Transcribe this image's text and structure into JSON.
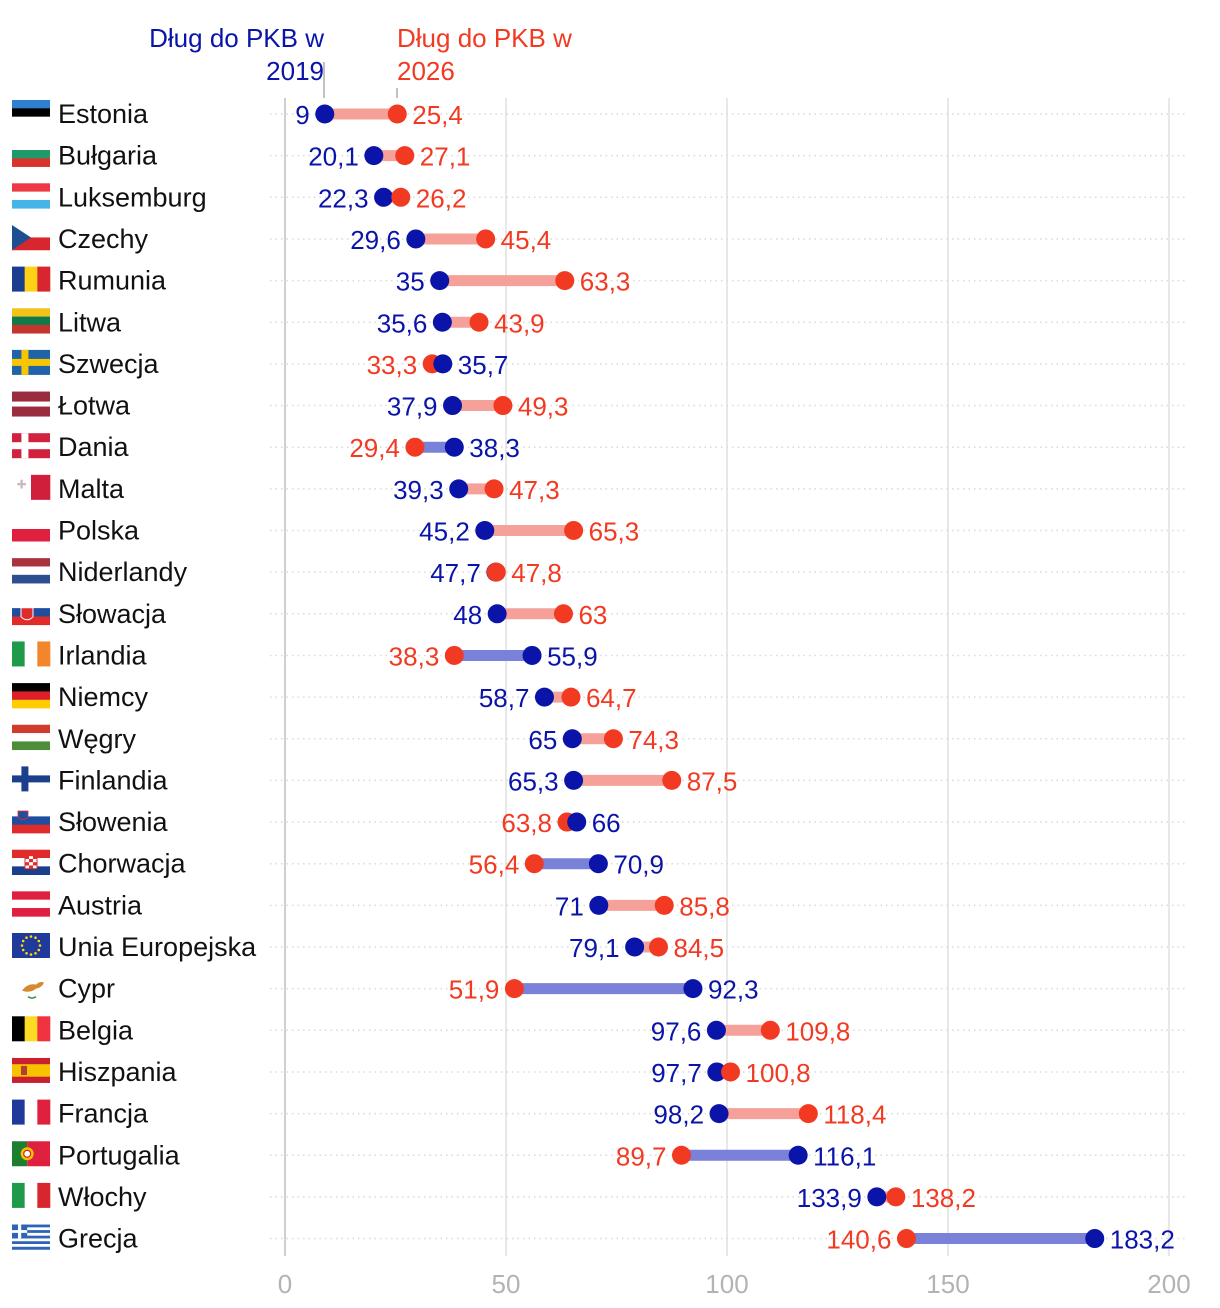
{
  "chart_data": {
    "type": "dumbbell",
    "title": "",
    "xlabel": "",
    "ylabel": "",
    "xlim": [
      0,
      200
    ],
    "xticks": [
      0,
      50,
      100,
      150,
      200
    ],
    "legend": {
      "series_2019_line1": "Dług do PKB w",
      "series_2019_line2": "2019",
      "series_2026_line1": "Dług do PKB w",
      "series_2026_line2": "2026",
      "placement": "top"
    },
    "colors": {
      "v2019": "#0a14a8",
      "v2026": "#f23a22",
      "bar_up": "#f6a09a",
      "bar_down": "#7a81d8",
      "grid": "#d9d9d9",
      "axis": "#cfcfcf"
    },
    "series_names": [
      "Dług do PKB w 2019",
      "Dług do PKB w 2026"
    ],
    "countries": [
      {
        "name": "Estonia",
        "v2019": 9,
        "v2026": 25.4,
        "l2019": "9",
        "l2026": "25,4",
        "flag": "estonia-flag"
      },
      {
        "name": "Bułgaria",
        "v2019": 20.1,
        "v2026": 27.1,
        "l2019": "20,1",
        "l2026": "27,1",
        "flag": "bulgaria-flag"
      },
      {
        "name": "Luksemburg",
        "v2019": 22.3,
        "v2026": 26.2,
        "l2019": "22,3",
        "l2026": "26,2",
        "flag": "luxembourg-flag"
      },
      {
        "name": "Czechy",
        "v2019": 29.6,
        "v2026": 45.4,
        "l2019": "29,6",
        "l2026": "45,4",
        "flag": "czechia-flag"
      },
      {
        "name": "Rumunia",
        "v2019": 35,
        "v2026": 63.3,
        "l2019": "35",
        "l2026": "63,3",
        "flag": "romania-flag"
      },
      {
        "name": "Litwa",
        "v2019": 35.6,
        "v2026": 43.9,
        "l2019": "35,6",
        "l2026": "43,9",
        "flag": "lithuania-flag"
      },
      {
        "name": "Szwecja",
        "v2019": 35.7,
        "v2026": 33.3,
        "l2019": "35,7",
        "l2026": "33,3",
        "flag": "sweden-flag"
      },
      {
        "name": "Łotwa",
        "v2019": 37.9,
        "v2026": 49.3,
        "l2019": "37,9",
        "l2026": "49,3",
        "flag": "latvia-flag"
      },
      {
        "name": "Dania",
        "v2019": 38.3,
        "v2026": 29.4,
        "l2019": "38,3",
        "l2026": "29,4",
        "flag": "denmark-flag"
      },
      {
        "name": "Malta",
        "v2019": 39.3,
        "v2026": 47.3,
        "l2019": "39,3",
        "l2026": "47,3",
        "flag": "malta-flag"
      },
      {
        "name": "Polska",
        "v2019": 45.2,
        "v2026": 65.3,
        "l2019": "45,2",
        "l2026": "65,3",
        "flag": "poland-flag"
      },
      {
        "name": "Niderlandy",
        "v2019": 47.7,
        "v2026": 47.8,
        "l2019": "47,7",
        "l2026": "47,8",
        "flag": "netherlands-flag"
      },
      {
        "name": "Słowacja",
        "v2019": 48,
        "v2026": 63,
        "l2019": "48",
        "l2026": "63",
        "flag": "slovakia-flag"
      },
      {
        "name": "Irlandia",
        "v2019": 55.9,
        "v2026": 38.3,
        "l2019": "55,9",
        "l2026": "38,3",
        "flag": "ireland-flag"
      },
      {
        "name": "Niemcy",
        "v2019": 58.7,
        "v2026": 64.7,
        "l2019": "58,7",
        "l2026": "64,7",
        "flag": "germany-flag"
      },
      {
        "name": "Węgry",
        "v2019": 65,
        "v2026": 74.3,
        "l2019": "65",
        "l2026": "74,3",
        "flag": "hungary-flag"
      },
      {
        "name": "Finlandia",
        "v2019": 65.3,
        "v2026": 87.5,
        "l2019": "65,3",
        "l2026": "87,5",
        "flag": "finland-flag"
      },
      {
        "name": "Słowenia",
        "v2019": 66,
        "v2026": 63.8,
        "l2019": "66",
        "l2026": "63,8",
        "flag": "slovenia-flag"
      },
      {
        "name": "Chorwacja",
        "v2019": 70.9,
        "v2026": 56.4,
        "l2019": "70,9",
        "l2026": "56,4",
        "flag": "croatia-flag"
      },
      {
        "name": "Austria",
        "v2019": 71,
        "v2026": 85.8,
        "l2019": "71",
        "l2026": "85,8",
        "flag": "austria-flag"
      },
      {
        "name": "Unia Europejska",
        "v2019": 79.1,
        "v2026": 84.5,
        "l2019": "79,1",
        "l2026": "84,5",
        "flag": "eu-flag"
      },
      {
        "name": "Cypr",
        "v2019": 92.3,
        "v2026": 51.9,
        "l2019": "92,3",
        "l2026": "51,9",
        "flag": "cyprus-flag"
      },
      {
        "name": "Belgia",
        "v2019": 97.6,
        "v2026": 109.8,
        "l2019": "97,6",
        "l2026": "109,8",
        "flag": "belgium-flag"
      },
      {
        "name": "Hiszpania",
        "v2019": 97.7,
        "v2026": 100.8,
        "l2019": "97,7",
        "l2026": "100,8",
        "flag": "spain-flag"
      },
      {
        "name": "Francja",
        "v2019": 98.2,
        "v2026": 118.4,
        "l2019": "98,2",
        "l2026": "118,4",
        "flag": "france-flag"
      },
      {
        "name": "Portugalia",
        "v2019": 116.1,
        "v2026": 89.7,
        "l2019": "116,1",
        "l2026": "89,7",
        "flag": "portugal-flag"
      },
      {
        "name": "Włochy",
        "v2019": 133.9,
        "v2026": 138.2,
        "l2019": "133,9",
        "l2026": "138,2",
        "flag": "italy-flag"
      },
      {
        "name": "Grecja",
        "v2019": 183.2,
        "v2026": 140.6,
        "l2019": "183,2",
        "l2026": "140,6",
        "flag": "greece-flag"
      }
    ]
  }
}
